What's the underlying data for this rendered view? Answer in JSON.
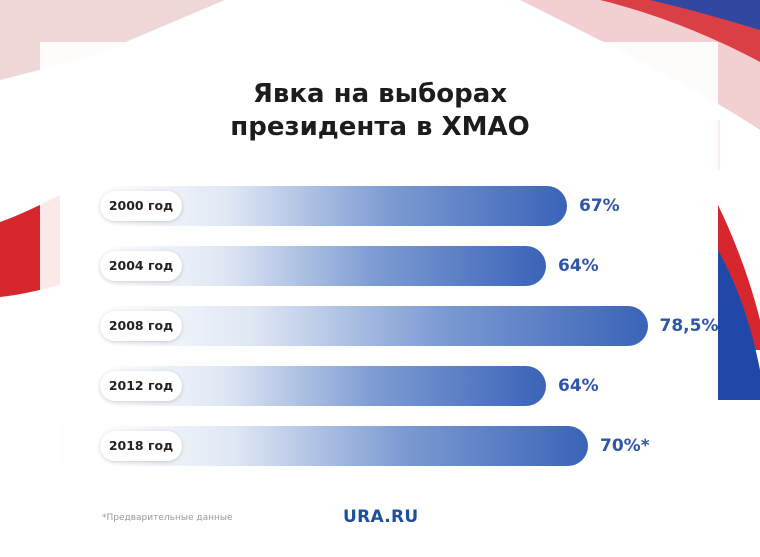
{
  "title_lines": [
    "Явка на выборах",
    "президента в ХМАО"
  ],
  "chart_data": {
    "type": "bar",
    "orientation": "horizontal",
    "categories": [
      "2000 год",
      "2004 год",
      "2008 год",
      "2012 год",
      "2018 год"
    ],
    "values": [
      67,
      64,
      78.5,
      64,
      70
    ],
    "value_labels": [
      "67%",
      "64%",
      "78,5%",
      "64%",
      "70%*"
    ],
    "title": "Явка на выборах президента в ХМАО",
    "colors": {
      "bar_start": "#ffffff",
      "bar_end": "#3a63b8",
      "value_text": "#2f55a8"
    }
  },
  "footnote": "*Предварительные данные",
  "brand": "URA.RU",
  "background_colors": {
    "red": "#d7262e",
    "blue": "#1f48a8",
    "white": "#ffffff"
  }
}
